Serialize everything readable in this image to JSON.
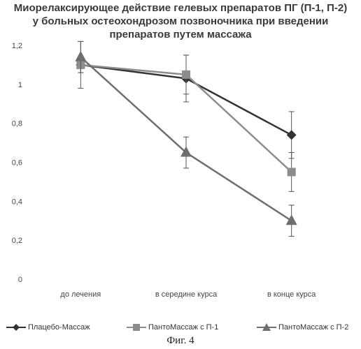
{
  "chart_data": {
    "type": "line",
    "title_lines": [
      "Миорелаксирующее действие гелевых препаратов ПГ (П-1, П-2)",
      "у больных остеохондрозом  позвоночника при введении",
      "препаратов путем массажа"
    ],
    "categories": [
      "до лечения",
      "в середине курса",
      "в конце курса"
    ],
    "ylim": [
      0,
      1.2
    ],
    "yticks": [
      "0",
      "0,2",
      "0,4",
      "0,6",
      "0,8",
      "1",
      "1,2"
    ],
    "grid": false,
    "legend_position": "bottom",
    "series": [
      {
        "name": "Плацебо-Массаж",
        "values": [
          1.1,
          1.03,
          0.74
        ],
        "errors": [
          0.12,
          0.12,
          0.12
        ],
        "marker": "diamond",
        "color": "#333333"
      },
      {
        "name": "ПантоМассаж с П-1",
        "values": [
          1.1,
          1.05,
          0.55
        ],
        "errors": [
          0.04,
          0.1,
          0.1
        ],
        "marker": "square",
        "color": "#8c8c8c"
      },
      {
        "name": "ПантоМассаж с П-2",
        "values": [
          1.14,
          0.65,
          0.3
        ],
        "errors": [
          0.08,
          0.08,
          0.08
        ],
        "marker": "triangle",
        "color": "#6e6e6e"
      }
    ]
  },
  "caption": "Фиг. 4"
}
